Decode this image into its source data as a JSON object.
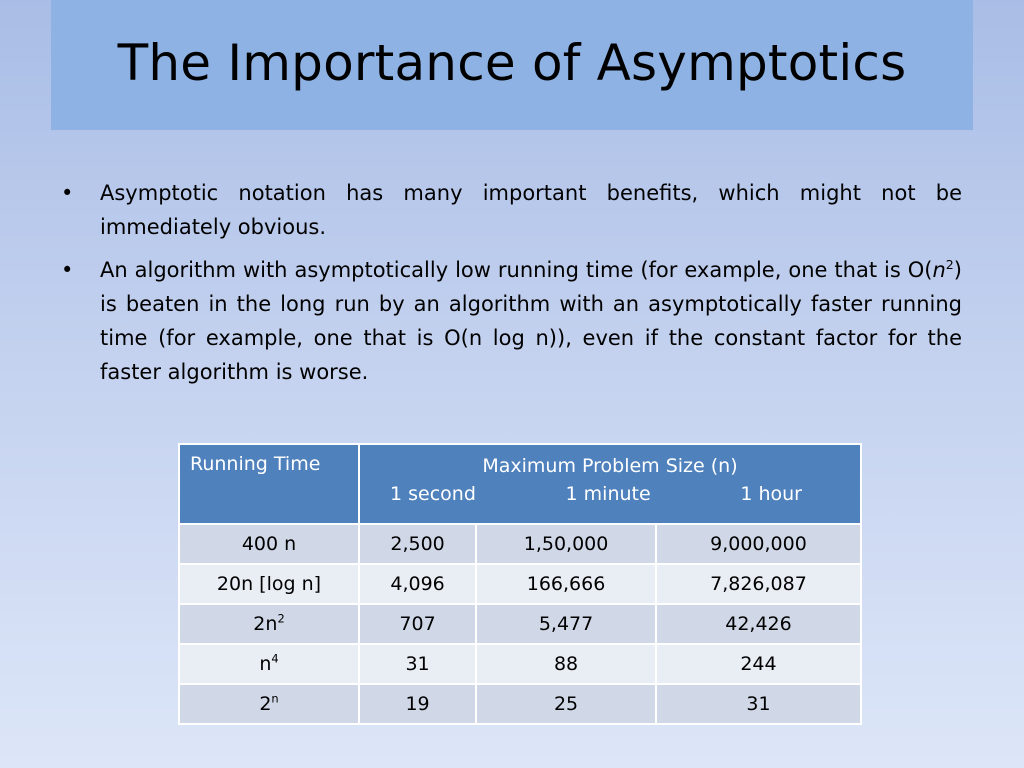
{
  "slide": {
    "title": "The Importance of Asymptotics"
  },
  "bullets": [
    {
      "marker": "•",
      "segments": [
        {
          "text": "Asymptotic notation has many important benefits, which might not be immediately obvious."
        }
      ]
    },
    {
      "marker": "•",
      "segments": [
        {
          "text": "An algorithm with asymptotically low running time (for example, one that is O("
        },
        {
          "text": "n",
          "italic": true
        },
        {
          "text": "2",
          "sup": true
        },
        {
          "text": ") is beaten in the long run by an algorithm with an asymptotically faster running time (for example, one that is O(n log n)), even if the constant factor for the faster algorithm is worse."
        }
      ]
    }
  ],
  "table": {
    "header": {
      "running_time": "Running Time",
      "max_problem_size": "Maximum Problem Size (n)",
      "sub_headers": [
        "1 second",
        "1 minute",
        "1 hour"
      ]
    },
    "rows": [
      {
        "label": "400 n",
        "label_sup": "",
        "values": [
          "2,500",
          "1,50,000",
          "9,000,000"
        ]
      },
      {
        "label": "20n [log n]",
        "label_sup": "",
        "values": [
          "4,096",
          "166,666",
          "7,826,087"
        ]
      },
      {
        "label": "2n",
        "label_sup": "2",
        "values": [
          "707",
          "5,477",
          "42,426"
        ]
      },
      {
        "label": "n",
        "label_sup": "4",
        "values": [
          "31",
          "88",
          "244"
        ]
      },
      {
        "label": "2",
        "label_sup": "n",
        "values": [
          "19",
          "25",
          "31"
        ]
      }
    ]
  }
}
